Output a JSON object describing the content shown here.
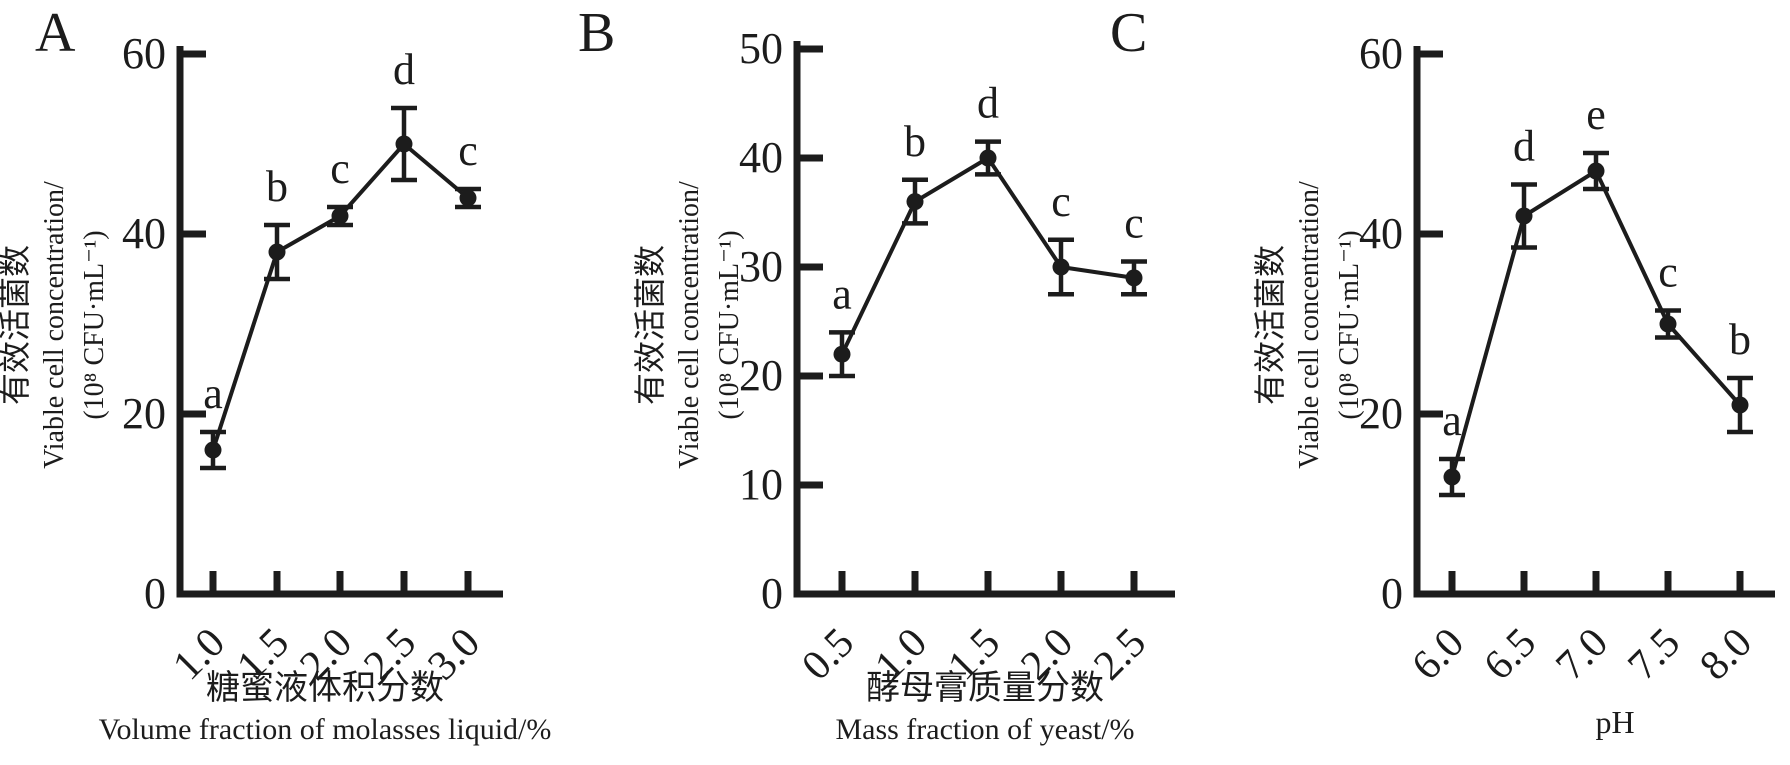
{
  "figure": {
    "panels": [
      {
        "label": "A",
        "y_axis_title_lines": [
          "有效活菌数",
          "Viable cell concentration/",
          "(10⁸ CFU·mL⁻¹)"
        ],
        "x_axis_title_lines": [
          "糖蜜液体积分数",
          "Volume fraction of molasses liquid/%"
        ]
      },
      {
        "label": "B",
        "y_axis_title_lines": [
          "有效活菌数",
          "Viable cell concentration/",
          "(10⁸ CFU·mL⁻¹)"
        ],
        "x_axis_title_lines": [
          "酵母膏质量分数",
          "Mass fraction of yeast/%"
        ]
      },
      {
        "label": "C",
        "y_axis_title_lines": [
          "有效活菌数",
          "Viable cell concentration/",
          "(10⁸ CFU·mL⁻¹)"
        ],
        "x_axis_title_lines": [
          "pH"
        ]
      }
    ]
  },
  "chart_data": [
    {
      "type": "line",
      "panel": "A",
      "title": "",
      "xlabel_zh": "糖蜜液体积分数",
      "xlabel_en": "Volume fraction of molasses liquid/%",
      "ylabel_zh": "有效活菌数",
      "ylabel_en": "Viable cell concentration/(10⁸ CFU·mL⁻¹)",
      "x": [
        1.0,
        1.5,
        2.0,
        2.5,
        3.0
      ],
      "xticklabels": [
        "1.0",
        "1.5",
        "2.0",
        "2.5",
        "3.0"
      ],
      "values": [
        16,
        38,
        42,
        50,
        44
      ],
      "error_bars": [
        2,
        3,
        1,
        4,
        1
      ],
      "sig_letters": [
        "a",
        "b",
        "c",
        "d",
        "c"
      ],
      "ylim": [
        0,
        60
      ],
      "yticks": [
        0,
        20,
        40,
        60
      ],
      "grid": false,
      "legend": "none",
      "marker": "filled-circle",
      "line_color": "#1c1c1c"
    },
    {
      "type": "line",
      "panel": "B",
      "title": "",
      "xlabel_zh": "酵母膏质量分数",
      "xlabel_en": "Mass fraction of yeast/%",
      "ylabel_zh": "有效活菌数",
      "ylabel_en": "Viable cell concentration/(10⁸ CFU·mL⁻¹)",
      "x": [
        0.5,
        1.0,
        1.5,
        2.0,
        2.5
      ],
      "xticklabels": [
        "0.5",
        "1.0",
        "1.5",
        "2.0",
        "2.5"
      ],
      "values": [
        22,
        36,
        40,
        30,
        29
      ],
      "error_bars": [
        2,
        2,
        1.5,
        2.5,
        1.5
      ],
      "sig_letters": [
        "a",
        "b",
        "d",
        "c",
        "c"
      ],
      "ylim": [
        0,
        50
      ],
      "yticks": [
        0,
        10,
        20,
        30,
        40,
        50
      ],
      "grid": false,
      "legend": "none",
      "marker": "filled-circle",
      "line_color": "#1c1c1c"
    },
    {
      "type": "line",
      "panel": "C",
      "title": "",
      "xlabel_zh": "",
      "xlabel_en": "pH",
      "ylabel_zh": "有效活菌数",
      "ylabel_en": "Viable cell concentration/(10⁸ CFU·mL⁻¹)",
      "x": [
        6.0,
        6.5,
        7.0,
        7.5,
        8.0
      ],
      "xticklabels": [
        "6.0",
        "6.5",
        "7.0",
        "7.5",
        "8.0"
      ],
      "values": [
        13,
        42,
        47,
        30,
        21
      ],
      "error_bars": [
        2,
        3.5,
        2,
        1.5,
        3
      ],
      "sig_letters": [
        "a",
        "d",
        "e",
        "c",
        "b"
      ],
      "ylim": [
        0,
        60
      ],
      "yticks": [
        0,
        20,
        40,
        60
      ],
      "grid": false,
      "legend": "none",
      "marker": "filled-circle",
      "line_color": "#1c1c1c"
    }
  ]
}
